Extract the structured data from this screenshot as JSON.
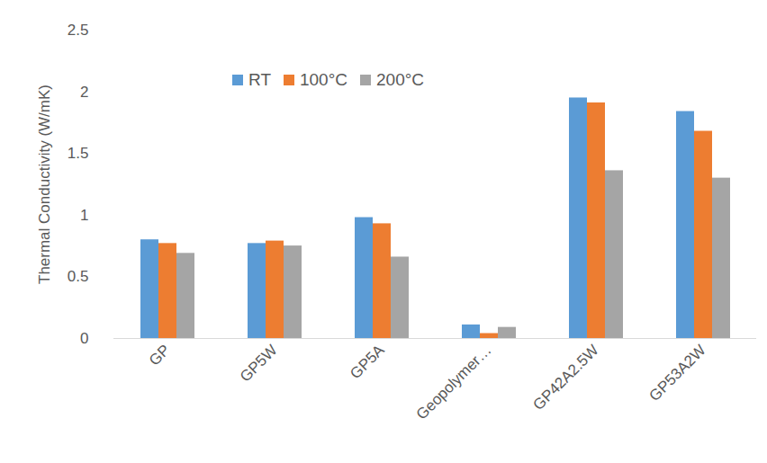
{
  "chart_data": {
    "type": "bar",
    "y_label": "Thermal Conductivity (W/mK)",
    "categories": [
      "GP",
      "GP5W",
      "GP5A",
      "Geopolymer…",
      "GP42A2.5W",
      "GP53A2W"
    ],
    "series": [
      {
        "name": "RT",
        "color": "#5b9bd5",
        "values": [
          0.8,
          0.77,
          0.98,
          0.11,
          1.95,
          1.84
        ]
      },
      {
        "name": "100°C",
        "color": "#ed7d31",
        "values": [
          0.77,
          0.79,
          0.93,
          0.04,
          1.91,
          1.68
        ]
      },
      {
        "name": "200°C",
        "color": "#a5a5a5",
        "values": [
          0.69,
          0.75,
          0.66,
          0.09,
          1.36,
          1.3
        ]
      }
    ],
    "ylim": [
      0,
      2.5
    ],
    "yticks": [
      0,
      0.5,
      1,
      1.5,
      2,
      2.5
    ],
    "grid": false,
    "legend": "top"
  }
}
